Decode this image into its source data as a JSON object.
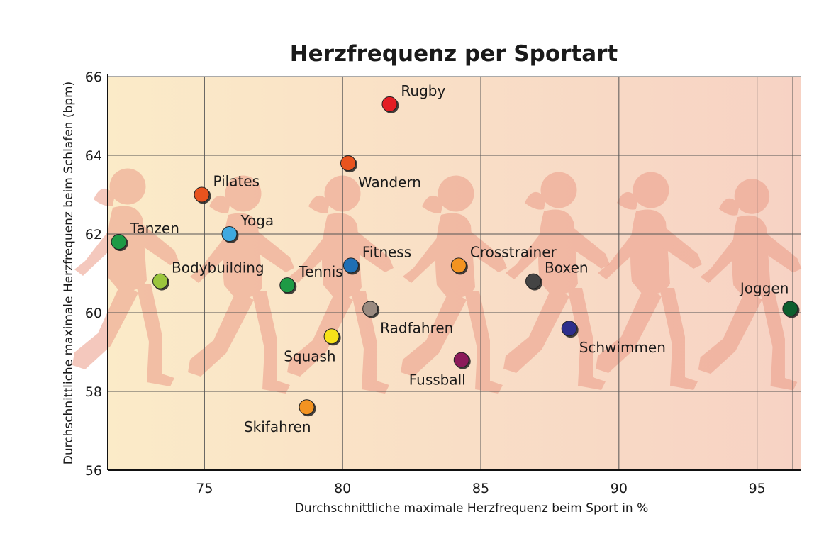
{
  "chart_data": {
    "type": "scatter",
    "title": "Herzfrequenz per Sportart",
    "xlabel": "Durchschnittliche maximale Herzfrequenz beim Sport in %",
    "ylabel": "Durchschnittliche maximale Herzfrequenz beim Schlafen (bpm)",
    "xlim": [
      71.5,
      96.6
    ],
    "ylim": [
      56,
      66
    ],
    "xticks": [
      75,
      80,
      85,
      90,
      95
    ],
    "yticks": [
      56,
      58,
      60,
      62,
      64,
      66
    ],
    "grid": true,
    "background": [
      "#fbebc8",
      "#f7d2c4"
    ],
    "points": [
      {
        "name": "Rugby",
        "x": 81.7,
        "y": 65.3,
        "color": "#e31e24",
        "label_pos": "right-above"
      },
      {
        "name": "Wandern",
        "x": 80.2,
        "y": 63.8,
        "color": "#e8531e",
        "label_pos": "right-below"
      },
      {
        "name": "Pilates",
        "x": 74.9,
        "y": 63.0,
        "color": "#e8531e",
        "label_pos": "right-above"
      },
      {
        "name": "Yoga",
        "x": 75.9,
        "y": 62.0,
        "color": "#3fa9e0",
        "label_pos": "right-above"
      },
      {
        "name": "Tanzen",
        "x": 71.9,
        "y": 61.8,
        "color": "#1e9a45",
        "label_pos": "right-above"
      },
      {
        "name": "Fitness",
        "x": 80.3,
        "y": 61.2,
        "color": "#1f6fb5",
        "label_pos": "right-above"
      },
      {
        "name": "Crosstrainer",
        "x": 84.2,
        "y": 61.2,
        "color": "#f39321",
        "label_pos": "right-above"
      },
      {
        "name": "Bodybuilding",
        "x": 73.4,
        "y": 60.8,
        "color": "#9bc53d",
        "label_pos": "right-above"
      },
      {
        "name": "Tennis",
        "x": 78.0,
        "y": 60.7,
        "color": "#1e9a45",
        "label_pos": "right-above"
      },
      {
        "name": "Boxen",
        "x": 86.9,
        "y": 60.8,
        "color": "#444444",
        "label_pos": "right-above"
      },
      {
        "name": "Joggen",
        "x": 96.2,
        "y": 60.1,
        "color": "#0d5e2e",
        "label_pos": "left-above"
      },
      {
        "name": "Radfahren",
        "x": 81.0,
        "y": 60.1,
        "color": "#9a8a80",
        "label_pos": "right-below"
      },
      {
        "name": "Schwimmen",
        "x": 88.2,
        "y": 59.6,
        "color": "#2e2e8c",
        "label_pos": "right-below"
      },
      {
        "name": "Squash",
        "x": 79.6,
        "y": 59.4,
        "color": "#f7e21a",
        "label_pos": "left-below"
      },
      {
        "name": "Fussball",
        "x": 84.3,
        "y": 58.8,
        "color": "#8b1a5a",
        "label_pos": "left-below"
      },
      {
        "name": "Skifahren",
        "x": 78.7,
        "y": 57.6,
        "color": "#f39321",
        "label_pos": "left-below"
      }
    ]
  }
}
